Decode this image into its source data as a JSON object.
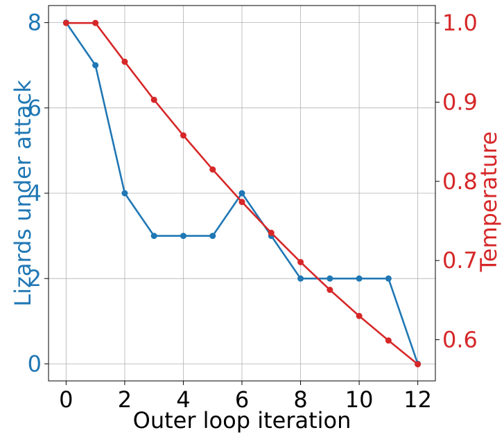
{
  "chart_data": {
    "type": "line",
    "xlabel": "Outer loop iteration",
    "ylabel_left": "Lizards under attack",
    "ylabel_right": "Temperature",
    "x": [
      0,
      1,
      2,
      3,
      4,
      5,
      6,
      7,
      8,
      9,
      10,
      11,
      12
    ],
    "xlim": [
      -0.6,
      12.6
    ],
    "ylim_left": [
      -0.4,
      8.4
    ],
    "ylim_right": [
      0.548,
      1.022
    ],
    "xticks": [
      "0",
      "2",
      "4",
      "6",
      "8",
      "10",
      "12"
    ],
    "yticks_left": [
      "0",
      "2",
      "4",
      "6",
      "8"
    ],
    "yticks_right": [
      "0.6",
      "0.7",
      "0.8",
      "0.9",
      "1.0"
    ],
    "grid": true,
    "series": [
      {
        "axis": "left",
        "color": "#1f77b4",
        "values": [
          8,
          7,
          4,
          3,
          3,
          3,
          4,
          3,
          2,
          2,
          2,
          2,
          0
        ]
      },
      {
        "axis": "right",
        "color": "#d62728",
        "values": [
          1.0,
          1.0,
          0.951,
          0.903,
          0.858,
          0.815,
          0.774,
          0.735,
          0.698,
          0.663,
          0.63,
          0.599,
          0.569
        ]
      }
    ]
  }
}
